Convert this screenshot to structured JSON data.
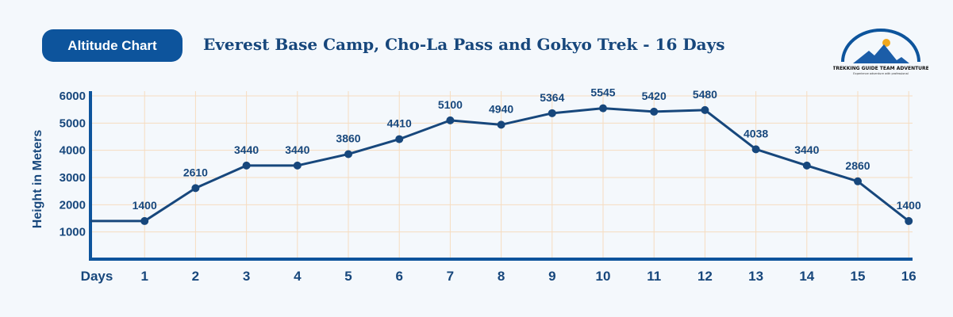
{
  "header": {
    "badge": "Altitude Chart",
    "title": "Everest Base Camp, Cho-La Pass and Gokyo Trek - 16 Days"
  },
  "logo": {
    "name": "TREKKING GUIDE TEAM ADVENTURE",
    "tagline": "Experience adventure with professional"
  },
  "colors": {
    "primary": "#0d549c",
    "line": "#17477c",
    "grid": "#f6dcc0",
    "background": "#f4f8fc"
  },
  "chart_data": {
    "type": "line",
    "xlabel": "Days",
    "ylabel": "Height in Meters",
    "ylim": [
      0,
      6000
    ],
    "yticks": [
      1000,
      2000,
      3000,
      4000,
      5000,
      6000
    ],
    "x": [
      1,
      2,
      3,
      4,
      5,
      6,
      7,
      8,
      9,
      10,
      11,
      12,
      13,
      14,
      15,
      16
    ],
    "values": [
      1400,
      2610,
      3440,
      3440,
      3860,
      4410,
      5100,
      4940,
      5364,
      5545,
      5420,
      5480,
      4038,
      3440,
      2860,
      1400
    ],
    "grid": true
  }
}
